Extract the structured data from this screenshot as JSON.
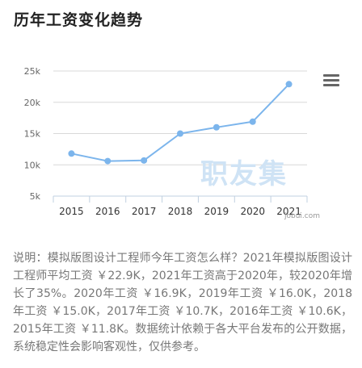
{
  "header": {
    "title": "历年工资变化趋势"
  },
  "chart_data": {
    "type": "line",
    "categories": [
      "2015",
      "2016",
      "2017",
      "2018",
      "2019",
      "2020",
      "2021"
    ],
    "values": [
      11.8,
      10.6,
      10.7,
      15.0,
      16.0,
      16.9,
      22.9
    ],
    "unit": "k",
    "yticks": [
      5,
      10,
      15,
      20,
      25
    ],
    "ytick_labels": [
      "5k",
      "10k",
      "15k",
      "20k",
      "25k"
    ],
    "ylim": [
      5,
      25
    ],
    "grid": true,
    "color": "#7cb5ec",
    "title": "",
    "xlabel": "",
    "ylabel": ""
  },
  "watermark": {
    "text": "职友集",
    "url": "jobui.com"
  },
  "menu": {
    "icon": "hamburger-menu-icon"
  },
  "description": {
    "text": "说明：模拟版图设计工程师今年工资怎么样？2021年模拟版图设计工程师平均工资 ￥22.9K，2021年工资高于2020年，较2020年增长了35%。2020年工资 ￥16.9K，2019年工资 ￥16.0K，2018年工资 ￥15.0K，2017年工资 ￥10.7K，2016年工资 ￥10.6K，2015年工资 ￥11.8K。数据统计依赖于各大平台发布的公开数据，系统稳定性会影响客观性，仅供参考。"
  }
}
